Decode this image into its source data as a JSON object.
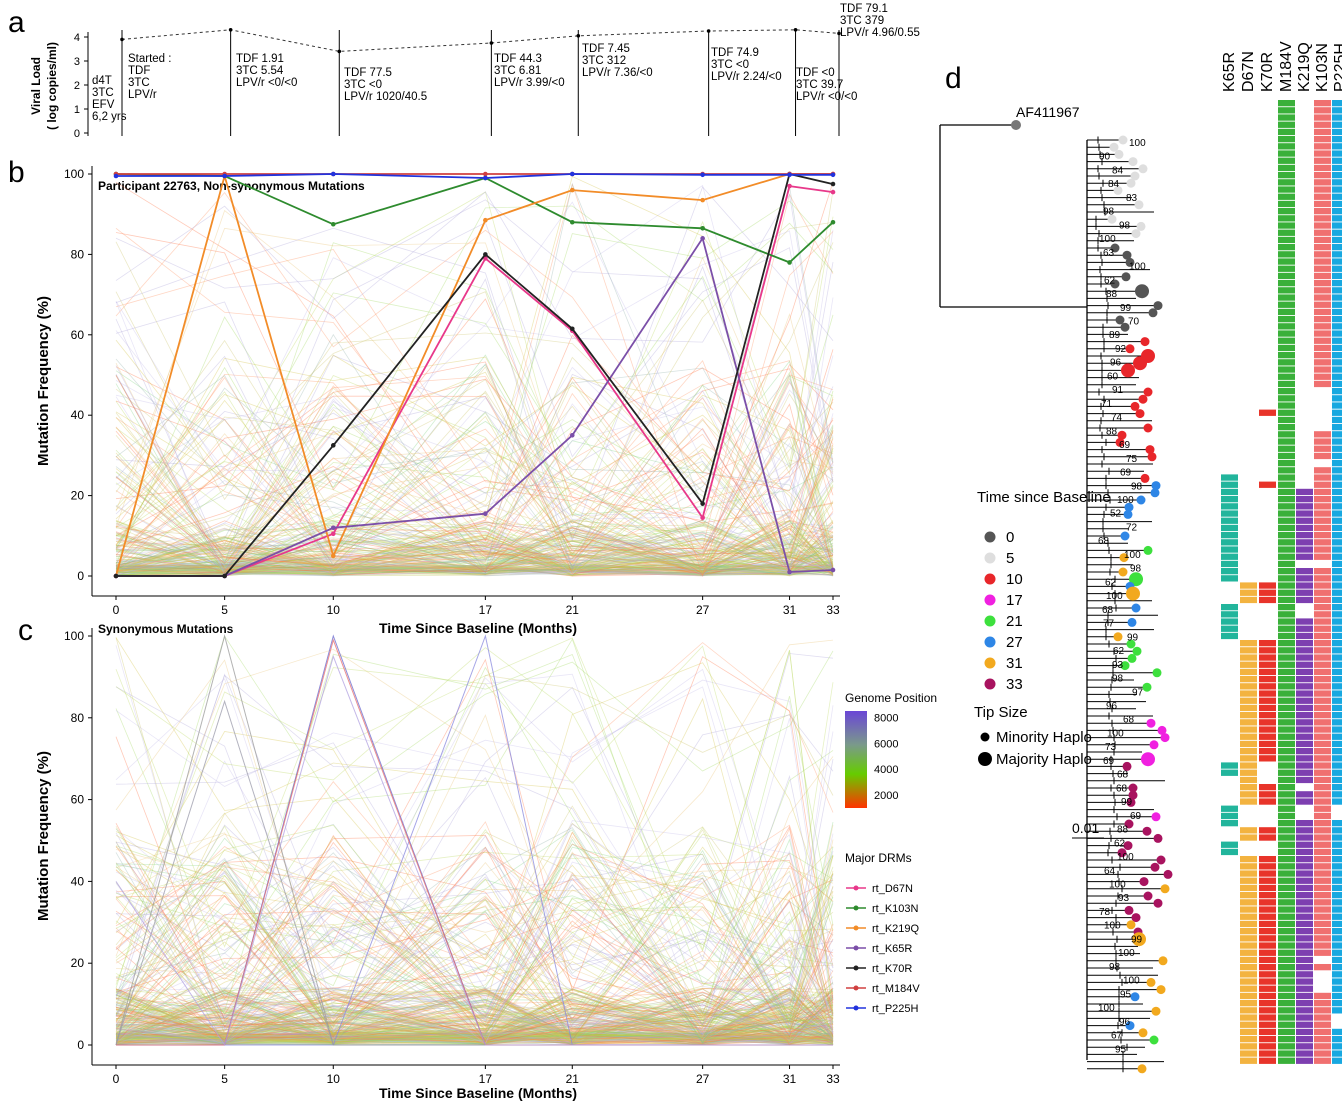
{
  "panels": {
    "a": {
      "label": "a",
      "ylabel_line1": "Viral Load",
      "ylabel_line2": "( log copies/ml)",
      "yticks": [
        0,
        1,
        2,
        3,
        4
      ],
      "points": [
        {
          "month": 0,
          "vl": 3.9
        },
        {
          "month": 5,
          "vl": 4.3
        },
        {
          "month": 10,
          "vl": 3.4
        },
        {
          "month": 17,
          "vl": 3.75
        },
        {
          "month": 21,
          "vl": 4.05
        },
        {
          "month": 27,
          "vl": 4.25
        },
        {
          "month": 31,
          "vl": 4.3
        },
        {
          "month": 33,
          "vl": 4.15
        }
      ],
      "annotations": [
        {
          "lines": [
            "d4T",
            "3TC",
            "EFV",
            "6,2 yrs"
          ]
        },
        {
          "lines": [
            "Started :",
            "TDF",
            "3TC",
            "LPV/r"
          ]
        },
        {
          "lines": [
            "TDF 1.91",
            "3TC 5.54",
            "LPV/r <0/<0"
          ]
        },
        {
          "lines": [
            "TDF 77.5",
            "3TC <0",
            "LPV/r 1020/40.5"
          ]
        },
        {
          "lines": [
            "TDF 44.3",
            "3TC 6.81",
            "LPV/r 3.99/<0"
          ]
        },
        {
          "lines": [
            "TDF 7.45",
            "3TC 312",
            "LPV/r 7.36/<0"
          ]
        },
        {
          "lines": [
            "TDF 74.9",
            "3TC <0",
            "LPV/r 2.24/<0"
          ]
        },
        {
          "lines": [
            "TDF <0",
            "3TC 39.7",
            "LPV/r <0/<0"
          ]
        },
        {
          "lines": [
            "TDF 79.1",
            "3TC 379",
            "LPV/r 4.96/0.55"
          ]
        }
      ]
    },
    "b": {
      "label": "b",
      "title": "Participant 22763, Non-synonymous Mutations",
      "ylabel": "Mutation Frequency (%)",
      "xlabel": "Time Since Baseline (Months)"
    },
    "c": {
      "label": "c",
      "title": "Synonymous Mutations",
      "ylabel": "Mutation Frequency (%)",
      "xlabel": "Time Since Baseline (Months)"
    },
    "d": {
      "label": "d",
      "outgroup": "AF411967",
      "scale_label": "0.01",
      "heatmap_columns": [
        "K65R",
        "D67N",
        "K70R",
        "M184V",
        "K219Q",
        "K103N",
        "P225H"
      ],
      "time_legend_title": "Time since Baseline",
      "time_legend": [
        {
          "label": "0",
          "color": "#555555"
        },
        {
          "label": "5",
          "color": "#dedede"
        },
        {
          "label": "10",
          "color": "#e8262a"
        },
        {
          "label": "17",
          "color": "#f020e0"
        },
        {
          "label": "21",
          "color": "#3de03d"
        },
        {
          "label": "27",
          "color": "#2e86e6"
        },
        {
          "label": "31",
          "color": "#f2a91e"
        },
        {
          "label": "33",
          "color": "#a8135f"
        }
      ],
      "tip_legend_title": "Tip Size",
      "tip_legend": [
        "Minority Haplo",
        "Majority Haplo"
      ],
      "bootstrap_labels": [
        "100",
        "90",
        "84",
        "84",
        "83",
        "98",
        "98",
        "100",
        "63",
        "100",
        "62",
        "88",
        "99",
        "70",
        "89",
        "92",
        "96",
        "60",
        "91",
        "71",
        "74",
        "88",
        "69",
        "75",
        "69",
        "98",
        "100",
        "52",
        "72",
        "68",
        "100",
        "98",
        "62",
        "100",
        "68",
        "77",
        "99",
        "62",
        "93",
        "98",
        "97",
        "96",
        "68",
        "100",
        "73",
        "69",
        "68",
        "68",
        "99",
        "69",
        "88",
        "62",
        "100",
        "64",
        "100",
        "93",
        "78",
        "100",
        "99",
        "100",
        "98",
        "100",
        "95",
        "100",
        "96",
        "67",
        "95"
      ]
    }
  },
  "legend": {
    "genome_title": "Genome Position",
    "genome_ticks": [
      2000,
      4000,
      6000,
      8000
    ],
    "drm_title": "Major DRMs",
    "drms": [
      {
        "name": "rt_D67N",
        "color": "#e8388a"
      },
      {
        "name": "rt_K103N",
        "color": "#2e8b2e"
      },
      {
        "name": "rt_K219Q",
        "color": "#f28c28"
      },
      {
        "name": "rt_K65R",
        "color": "#7b4fa8"
      },
      {
        "name": "rt_K70R",
        "color": "#222222"
      },
      {
        "name": "rt_M184V",
        "color": "#d04040"
      },
      {
        "name": "rt_P225H",
        "color": "#2233dd"
      }
    ]
  },
  "chart_data": [
    {
      "type": "line",
      "title": "",
      "xlabel": "",
      "ylabel": "Viral Load ( log copies/ml)",
      "x": [
        0,
        5,
        10,
        17,
        21,
        27,
        31,
        33
      ],
      "ylim": [
        0,
        4.5
      ],
      "series": [
        {
          "values": [
            3.9,
            4.3,
            3.4,
            3.75,
            4.05,
            4.25,
            4.3,
            4.15
          ]
        }
      ]
    },
    {
      "type": "line",
      "title": "Participant 22763, Non-synonymous Mutations",
      "xlabel": "Time Since Baseline (Months)",
      "ylabel": "Mutation Frequency (%)",
      "x": [
        0,
        5,
        10,
        17,
        21,
        27,
        31,
        33
      ],
      "ylim": [
        0,
        100
      ],
      "grid": false,
      "legend": "right",
      "series": [
        {
          "name": "rt_D67N",
          "values": [
            0,
            0,
            10.5,
            79,
            61,
            14.5,
            97,
            95.5
          ]
        },
        {
          "name": "rt_K103N",
          "values": [
            100,
            99.5,
            87.5,
            99,
            88,
            86.5,
            78,
            88
          ]
        },
        {
          "name": "rt_K219Q",
          "values": [
            0,
            99.5,
            5,
            88.5,
            96,
            93.5,
            100,
            100
          ]
        },
        {
          "name": "rt_K65R",
          "values": [
            0,
            0,
            12,
            15.5,
            35,
            84,
            1,
            1.5
          ]
        },
        {
          "name": "rt_K70R",
          "values": [
            0,
            0,
            32.5,
            80,
            61.5,
            18,
            100,
            97.5
          ]
        },
        {
          "name": "rt_M184V",
          "values": [
            100,
            100,
            100,
            100,
            100,
            100,
            100,
            100
          ]
        },
        {
          "name": "rt_P225H",
          "values": [
            99.5,
            99.5,
            100,
            99,
            100,
            99.8,
            99.8,
            99.8
          ]
        }
      ]
    },
    {
      "type": "line",
      "title": "Synonymous Mutations",
      "xlabel": "Time Since Baseline (Months)",
      "ylabel": "Mutation Frequency (%)",
      "x": [
        0,
        5,
        10,
        17,
        21,
        27,
        31,
        33
      ],
      "ylim": [
        0,
        100
      ],
      "grid": false,
      "series": []
    }
  ]
}
